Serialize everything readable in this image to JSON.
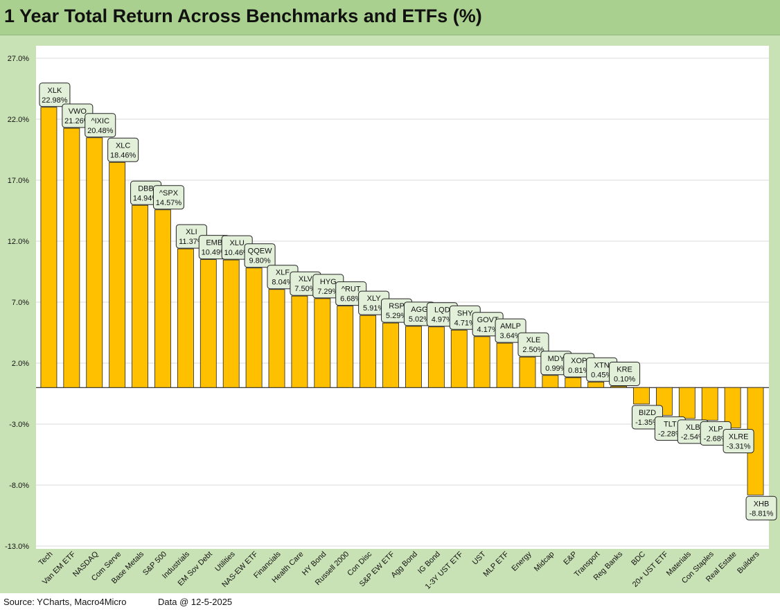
{
  "chart_data": {
    "type": "bar",
    "title": "1 Year Total Return Across Benchmarks and ETFs (%)",
    "xlabel": "",
    "ylabel": "",
    "ylim": [
      -13.0,
      27.0
    ],
    "yticks": [
      "27.0%",
      "22.0%",
      "17.0%",
      "12.0%",
      "7.0%",
      "2.0%",
      "-3.0%",
      "-8.0%",
      "-13.0%"
    ],
    "ytick_values": [
      27,
      22,
      17,
      12,
      7,
      2,
      -3,
      -8,
      -13
    ],
    "grid": true,
    "bar_color": "#ffc000",
    "categories": [
      "Tech",
      "Van EM ETF",
      "NASDAQ",
      "Com Serve",
      "Base Metals",
      "S&P 500",
      "Industrials",
      "EM Sov Debt",
      "Utilities",
      "NAS-EW ETF",
      "Financials",
      "Health Care",
      "HY Bond",
      "Russell 2000",
      "Con Disc",
      "S&P EW ETF",
      "Agg Bond",
      "IG Bond",
      "1-3Y UST ETF",
      "UST",
      "MLP ETF",
      "Energy",
      "Midcap",
      "E&P",
      "Transport",
      "Reg Banks",
      "BDC",
      "20+ UST ETF",
      "Materials",
      "Con Staples",
      "Real Estate",
      "Builders"
    ],
    "tickers": [
      "XLK",
      "VWO",
      "^IXIC",
      "XLC",
      "DBB",
      "^SPX",
      "XLI",
      "EMB",
      "XLU",
      "QQEW",
      "XLF",
      "XLV",
      "HYG",
      "^RUT",
      "XLY",
      "RSP",
      "AGG",
      "LQD",
      "SHY",
      "GOVT",
      "AMLP",
      "XLE",
      "MDY",
      "XOP",
      "XTN",
      "KRE",
      "BIZD",
      "TLT",
      "XLB",
      "XLP",
      "XLRE",
      "XHB"
    ],
    "values": [
      22.98,
      21.26,
      20.48,
      18.46,
      14.94,
      14.57,
      11.37,
      10.49,
      10.46,
      9.8,
      8.04,
      7.5,
      7.29,
      6.68,
      5.91,
      5.29,
      5.02,
      4.97,
      4.71,
      4.17,
      3.64,
      2.5,
      0.99,
      0.81,
      0.45,
      0.1,
      -1.35,
      -2.28,
      -2.54,
      -2.68,
      -3.31,
      -8.81
    ],
    "value_labels": [
      "22.98%",
      "21.26%",
      "20.48%",
      "18.46%",
      "14.94%",
      "14.57%",
      "11.37%",
      "10.49%",
      "10.46%",
      "9.80%",
      "8.04%",
      "7.50%",
      "7.29%",
      "6.68%",
      "5.91%",
      "5.29%",
      "5.02%",
      "4.97%",
      "4.71%",
      "4.17%",
      "3.64%",
      "2.50%",
      "0.99%",
      "0.81%",
      "0.45%",
      "0.10%",
      "-1.35%",
      "-2.28%",
      "-2.54%",
      "-2.68%",
      "-3.31%",
      "-8.81%"
    ]
  },
  "footer": {
    "source": "Source: YCharts, Macro4Micro",
    "asof": "Data @ 12-5-2025"
  }
}
